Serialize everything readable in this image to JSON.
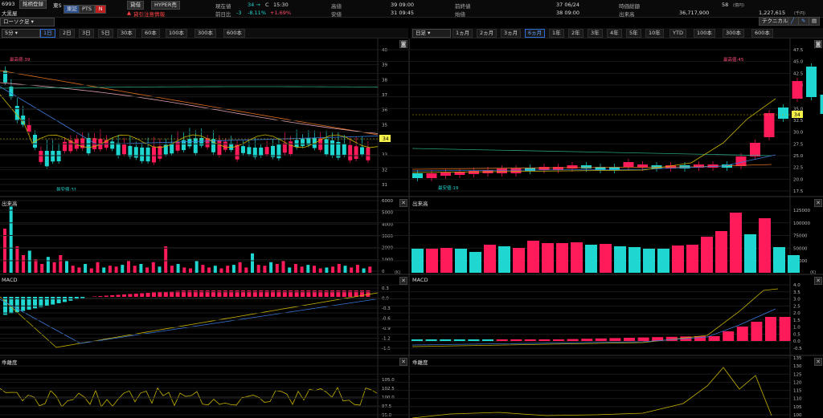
{
  "header": {
    "code": "6993",
    "list_button": "銘柄登録",
    "market_button": "東S",
    "name": "大黒屋",
    "chart_type": "ローソク足",
    "pts_button": "PTS",
    "badge1": "東証",
    "buy_button": "貸借",
    "hyper_button": "HYPER売",
    "warning": "貸引注意情報",
    "current_label": "現在値",
    "current_value": "34 →",
    "current_c": "C",
    "current_time": "15:30",
    "change_label": "前日比",
    "change_value": "-3",
    "change_pct": "-8.11%",
    "change_pct2": "+1.69%",
    "high_label": "高値",
    "high_value": "39 09:00",
    "low_label": "安値",
    "low_value": "31 09:45",
    "prevclose_label": "前終値",
    "prevclose_value": "37 06/24",
    "open_label": "始値",
    "open_value": "38 09:00",
    "mcap_label": "時価総額",
    "mcap_value": "58",
    "mcap_unit": "(億円)",
    "volume_label": "出来高",
    "volume_value": "36,717,900",
    "turnover_value": "1,227,615",
    "turnover_unit": "(千円)",
    "technical_button": "テクニカル"
  },
  "left_toolbar": {
    "interval": "5分",
    "tabs": [
      "1日",
      "2日",
      "3日",
      "5日",
      "30本",
      "60本",
      "100本",
      "300本",
      "600本"
    ],
    "active": 0
  },
  "right_toolbar": {
    "interval": "日足",
    "tabs": [
      "1ヵ月",
      "2ヵ月",
      "3ヵ月",
      "6ヵ月",
      "1年",
      "2年",
      "3年",
      "4年",
      "5年",
      "10年",
      "YTD",
      "100本",
      "300本",
      "600本"
    ],
    "active": 3
  },
  "left_chart": {
    "high_label": "最高値:39",
    "low_label": "最安値:31",
    "price_tag": "34",
    "y_ticks": [
      "40",
      "39",
      "38",
      "37",
      "36",
      "35",
      "34",
      "33",
      "32",
      "31"
    ]
  },
  "right_chart": {
    "high_label": "最高値:45",
    "low_label": "最安値:19",
    "price_tag": "34",
    "y_ticks": [
      "47.5",
      "45.0",
      "42.5",
      "40.0",
      "37.5",
      "35.0",
      "32.5",
      "30.0",
      "27.5",
      "25.0",
      "22.5",
      "20.0",
      "17.5"
    ]
  },
  "panels": {
    "volume": "出来高",
    "macd": "MACD",
    "deviation": "乖離度",
    "unit_k": "(K)"
  },
  "left_volume_ticks": [
    "6000",
    "5000",
    "4000",
    "3000",
    "2000",
    "1000",
    "0"
  ],
  "right_volume_ticks": [
    "125000",
    "100000",
    "75000",
    "50000",
    "25000"
  ],
  "left_macd_ticks": [
    "0.3",
    "0.0",
    "-0.3",
    "-0.6",
    "-0.9",
    "-1.2",
    "-1.5"
  ],
  "right_macd_ticks": [
    "4.0",
    "3.5",
    "3.0",
    "2.5",
    "2.0",
    "1.5",
    "1.0",
    "0.5",
    "0.0",
    "-0.5"
  ],
  "left_dev_ticks": [
    "105.0",
    "102.5",
    "100.0",
    "97.5",
    "95.0"
  ],
  "right_dev_ticks": [
    "135",
    "130",
    "125",
    "120",
    "115",
    "110",
    "105",
    "100"
  ],
  "colors": {
    "up": "#ff1a5a",
    "down": "#1fd6d0",
    "yellow": "#c8b400",
    "orange": "#e07020",
    "pink": "#e0a0b0",
    "blue": "#3a78d8",
    "green": "#2aa080"
  }
}
